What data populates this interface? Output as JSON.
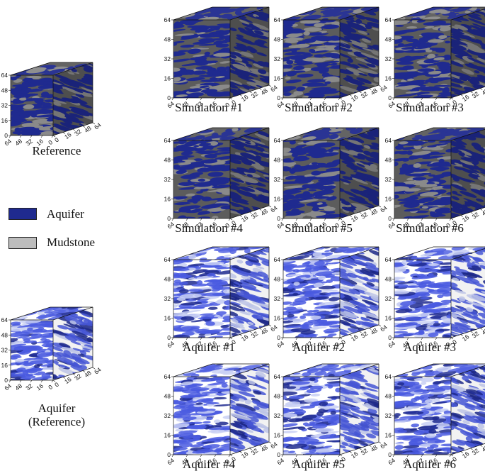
{
  "legend": {
    "items": [
      {
        "label": "Aquifer",
        "color": "#1f2a8f"
      },
      {
        "label": "Mudstone",
        "color": "#bdbdbd"
      }
    ]
  },
  "colors": {
    "aquifer_dark": "#1f2a8f",
    "mudstone_dark": "#5c5c5c",
    "aquifer_light": "#4a5be0",
    "aquifer_pale": "#c8cff3"
  },
  "axis_ticks": [
    "0",
    "16",
    "32",
    "48",
    "64"
  ],
  "panels": [
    {
      "id": "reference",
      "caption_lines": [
        "Reference"
      ],
      "style": "facies"
    },
    {
      "id": "sim1",
      "caption_lines": [
        "Simulation #1"
      ],
      "style": "facies"
    },
    {
      "id": "sim2",
      "caption_lines": [
        "Simulation #2"
      ],
      "style": "facies"
    },
    {
      "id": "sim3",
      "caption_lines": [
        "Simulation #3"
      ],
      "style": "facies"
    },
    {
      "id": "sim4",
      "caption_lines": [
        "Simulation #4"
      ],
      "style": "facies"
    },
    {
      "id": "sim5",
      "caption_lines": [
        "Simulation #5"
      ],
      "style": "facies"
    },
    {
      "id": "sim6",
      "caption_lines": [
        "Simulation #6"
      ],
      "style": "facies"
    },
    {
      "id": "aq_ref",
      "caption_lines": [
        "Aquifer",
        "(Reference)"
      ],
      "style": "aquifer"
    },
    {
      "id": "aq1",
      "caption_lines": [
        "Aquifer #1"
      ],
      "style": "aquifer"
    },
    {
      "id": "aq2",
      "caption_lines": [
        "Aquifer #2"
      ],
      "style": "aquifer"
    },
    {
      "id": "aq3",
      "caption_lines": [
        "Aquifer #3"
      ],
      "style": "aquifer"
    },
    {
      "id": "aq4",
      "caption_lines": [
        "Aquifer #4"
      ],
      "style": "aquifer"
    },
    {
      "id": "aq5",
      "caption_lines": [
        "Aquifer #5"
      ],
      "style": "aquifer"
    },
    {
      "id": "aq6",
      "caption_lines": [
        "Aquifer #6"
      ],
      "style": "aquifer"
    }
  ]
}
